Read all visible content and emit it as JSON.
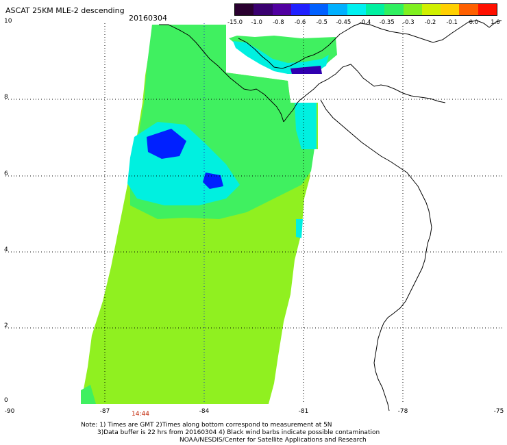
{
  "header": {
    "title": "ASCAT 25KM MLE-2 descending",
    "date": "20160304"
  },
  "colorbar": {
    "labels": [
      "-15.0",
      "-1.0",
      "-0.8",
      "-0.6",
      "-0.5",
      "-0.45",
      "-0.4",
      "-0.35",
      "-0.3",
      "-0.2",
      "-0.1",
      "0.0",
      "1.0"
    ],
    "colors": [
      "#2a0030",
      "#3a0070",
      "#5000a0",
      "#2020ff",
      "#0060ff",
      "#00b0ff",
      "#00f0f0",
      "#00f0a0",
      "#30f060",
      "#80f020",
      "#d0f000",
      "#ffd000",
      "#ff6000",
      "#ff1000"
    ]
  },
  "axes": {
    "y_ticks": [
      "10",
      "8",
      "6",
      "4",
      "2",
      "0"
    ],
    "x_ticks": [
      "-90",
      "-87",
      "-84",
      "-81",
      "-78",
      "-75"
    ]
  },
  "pass_time": "14:44",
  "notes": {
    "line1": "Note: 1) Times are GMT 2)Times along bottom correspond to measurement at 5N",
    "line2": "3)Data buffer is 22 hrs from 20160304 4) Black wind barbs indicate possible contamination",
    "line3": "NOAA/NESDIS/Center for Satellite Applications and Research"
  },
  "colors": {
    "swath_main": "#90f020",
    "swath_green": "#40f060",
    "swath_cyan": "#00f0e0",
    "swath_blue": "#0020ff",
    "coast": "#000000",
    "grid": "#000000"
  }
}
